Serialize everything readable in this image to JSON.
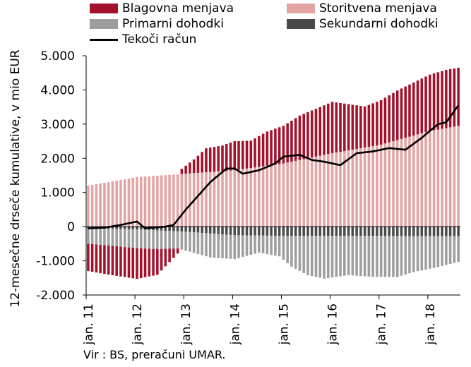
{
  "chart_data": {
    "type": "bar",
    "stacked": true,
    "ylabel": "12-mesečne drseče kumulative, v mio EUR",
    "ylim": [
      -2000,
      5000
    ],
    "yticks": [
      -2000,
      -1000,
      0,
      1000,
      2000,
      3000,
      4000,
      5000
    ],
    "ytick_labels": [
      "-2.000",
      "-1.000",
      "0",
      "1.000",
      "2.000",
      "3.000",
      "4.000",
      "5.000"
    ],
    "x_tick_labels": [
      "jan. 11",
      "jan. 12",
      "jan. 13",
      "jan. 14",
      "jan. 15",
      "jan. 16",
      "jan. 17",
      "jan. 18"
    ],
    "periods": 92,
    "legend_position": "top",
    "series_keyframes": {
      "goods": [
        [
          0,
          -800
        ],
        [
          5,
          -850
        ],
        [
          12,
          -900
        ],
        [
          17,
          -750
        ],
        [
          22,
          -150
        ],
        [
          23,
          150
        ],
        [
          26,
          400
        ],
        [
          29,
          700
        ],
        [
          33,
          750
        ],
        [
          36,
          850
        ],
        [
          40,
          800
        ],
        [
          44,
          1000
        ],
        [
          48,
          1100
        ],
        [
          52,
          1300
        ],
        [
          56,
          1400
        ],
        [
          60,
          1500
        ],
        [
          64,
          1350
        ],
        [
          68,
          1200
        ],
        [
          72,
          1300
        ],
        [
          76,
          1450
        ],
        [
          80,
          1550
        ],
        [
          84,
          1650
        ],
        [
          88,
          1700
        ],
        [
          91,
          1700
        ]
      ],
      "services": [
        [
          0,
          1200
        ],
        [
          12,
          1450
        ],
        [
          24,
          1550
        ],
        [
          36,
          1650
        ],
        [
          48,
          1850
        ],
        [
          60,
          2150
        ],
        [
          72,
          2400
        ],
        [
          84,
          2800
        ],
        [
          91,
          2950
        ]
      ],
      "primary": [
        [
          0,
          -450
        ],
        [
          12,
          -550
        ],
        [
          17,
          -550
        ],
        [
          22,
          -500
        ],
        [
          30,
          -700
        ],
        [
          36,
          -700
        ],
        [
          42,
          -500
        ],
        [
          47,
          -600
        ],
        [
          50,
          -900
        ],
        [
          54,
          -1150
        ],
        [
          58,
          -1250
        ],
        [
          64,
          -1150
        ],
        [
          70,
          -1200
        ],
        [
          76,
          -1200
        ],
        [
          80,
          -1050
        ],
        [
          86,
          -900
        ],
        [
          91,
          -750
        ]
      ],
      "secondary": [
        [
          0,
          -50
        ],
        [
          12,
          -80
        ],
        [
          24,
          -150
        ],
        [
          36,
          -250
        ],
        [
          48,
          -270
        ],
        [
          60,
          -270
        ],
        [
          72,
          -270
        ],
        [
          84,
          -280
        ],
        [
          91,
          -280
        ]
      ],
      "current": [
        [
          0,
          -50
        ],
        [
          4,
          -30
        ],
        [
          8,
          50
        ],
        [
          12,
          150
        ],
        [
          14,
          -50
        ],
        [
          16,
          -30
        ],
        [
          19,
          0
        ],
        [
          21,
          50
        ],
        [
          24,
          500
        ],
        [
          27,
          900
        ],
        [
          30,
          1300
        ],
        [
          34,
          1700
        ],
        [
          36,
          1700
        ],
        [
          38,
          1550
        ],
        [
          42,
          1650
        ],
        [
          46,
          1850
        ],
        [
          48,
          2050
        ],
        [
          52,
          2100
        ],
        [
          55,
          1950
        ],
        [
          58,
          1900
        ],
        [
          60,
          1850
        ],
        [
          62,
          1800
        ],
        [
          66,
          2150
        ],
        [
          70,
          2200
        ],
        [
          74,
          2300
        ],
        [
          78,
          2250
        ],
        [
          82,
          2600
        ],
        [
          86,
          3000
        ],
        [
          88,
          3050
        ],
        [
          91,
          3550
        ]
      ]
    },
    "series": [
      {
        "name": "Blagovna menjava",
        "color": "#a3122b"
      },
      {
        "name": "Storitvena menjava",
        "color": "#e3a4a4"
      },
      {
        "name": "Primarni dohodki",
        "color": "#9e9e9e"
      },
      {
        "name": "Sekundarni dohodki",
        "color": "#4a4a4a"
      },
      {
        "name": "Tekoči račun",
        "color": "#000000"
      }
    ]
  },
  "source": "Vir : BS, preračuni  UMAR."
}
